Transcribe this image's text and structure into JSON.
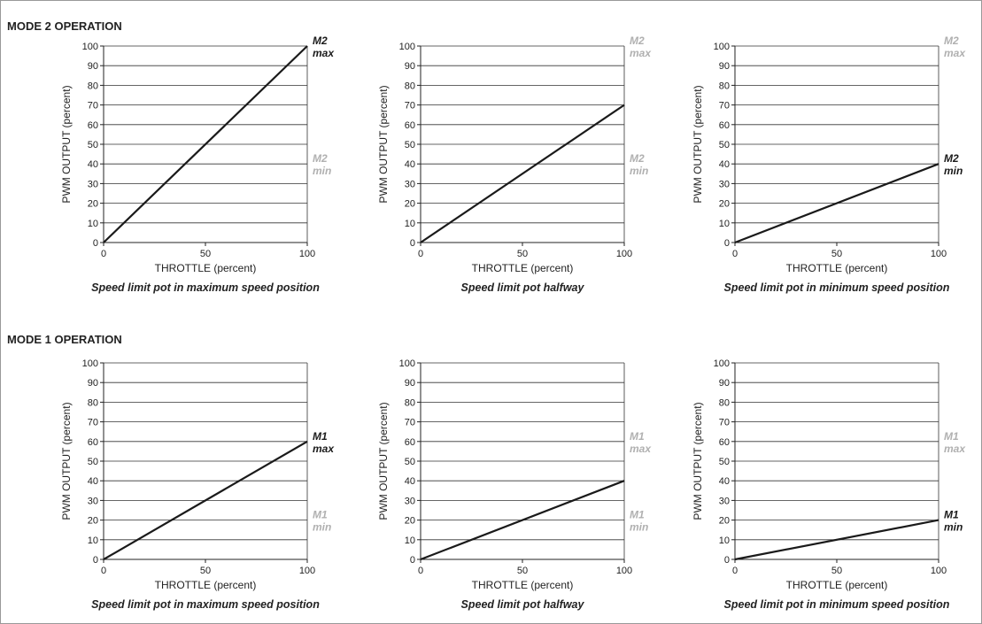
{
  "sections": [
    {
      "title": "MODE 2 OPERATION",
      "charts": [
        {
          "caption": "Speed limit pot in maximum speed position",
          "max_annot": [
            "M2",
            "max"
          ],
          "min_annot": [
            "M2",
            "min"
          ],
          "max_active": true,
          "min_active": false,
          "annot_levels": {
            "max": 100,
            "min": 40
          },
          "line": {
            "x": [
              0,
              100
            ],
            "y": [
              0,
              100
            ]
          }
        },
        {
          "caption": "Speed limit pot halfway",
          "max_annot": [
            "M2",
            "max"
          ],
          "min_annot": [
            "M2",
            "min"
          ],
          "max_active": false,
          "min_active": false,
          "annot_levels": {
            "max": 100,
            "min": 40
          },
          "line": {
            "x": [
              0,
              100
            ],
            "y": [
              0,
              70
            ]
          }
        },
        {
          "caption": "Speed limit pot in minimum speed position",
          "max_annot": [
            "M2",
            "max"
          ],
          "min_annot": [
            "M2",
            "min"
          ],
          "max_active": false,
          "min_active": true,
          "annot_levels": {
            "max": 100,
            "min": 40
          },
          "line": {
            "x": [
              0,
              100
            ],
            "y": [
              0,
              40
            ]
          }
        }
      ]
    },
    {
      "title": "MODE 1 OPERATION",
      "charts": [
        {
          "caption": "Speed limit pot in maximum speed position",
          "max_annot": [
            "M1",
            "max"
          ],
          "min_annot": [
            "M1",
            "min"
          ],
          "max_active": true,
          "min_active": false,
          "annot_levels": {
            "max": 60,
            "min": 20
          },
          "line": {
            "x": [
              0,
              100
            ],
            "y": [
              0,
              60
            ]
          }
        },
        {
          "caption": "Speed limit pot halfway",
          "max_annot": [
            "M1",
            "max"
          ],
          "min_annot": [
            "M1",
            "min"
          ],
          "max_active": false,
          "min_active": false,
          "annot_levels": {
            "max": 60,
            "min": 20
          },
          "line": {
            "x": [
              0,
              100
            ],
            "y": [
              0,
              40
            ]
          }
        },
        {
          "caption": "Speed limit pot in minimum speed position",
          "max_annot": [
            "M1",
            "max"
          ],
          "min_annot": [
            "M1",
            "min"
          ],
          "max_active": false,
          "min_active": true,
          "annot_levels": {
            "max": 60,
            "min": 20
          },
          "line": {
            "x": [
              0,
              100
            ],
            "y": [
              0,
              20
            ]
          }
        }
      ]
    }
  ],
  "chart_data": {
    "type": "line",
    "xlabel": "THROTTLE  (percent)",
    "ylabel": "PWM OUTPUT  (percent)",
    "xlim": [
      0,
      100
    ],
    "ylim": [
      0,
      100
    ],
    "xticks": [
      0,
      50,
      100
    ],
    "yticks": [
      0,
      10,
      20,
      30,
      40,
      50,
      60,
      70,
      80,
      90,
      100
    ],
    "grid": "horizontal",
    "colors": {
      "line": "#1a1a1a",
      "active_annot": "#1a1a1a",
      "inactive_annot": "#b0b0b0",
      "grid": "#333333"
    }
  }
}
